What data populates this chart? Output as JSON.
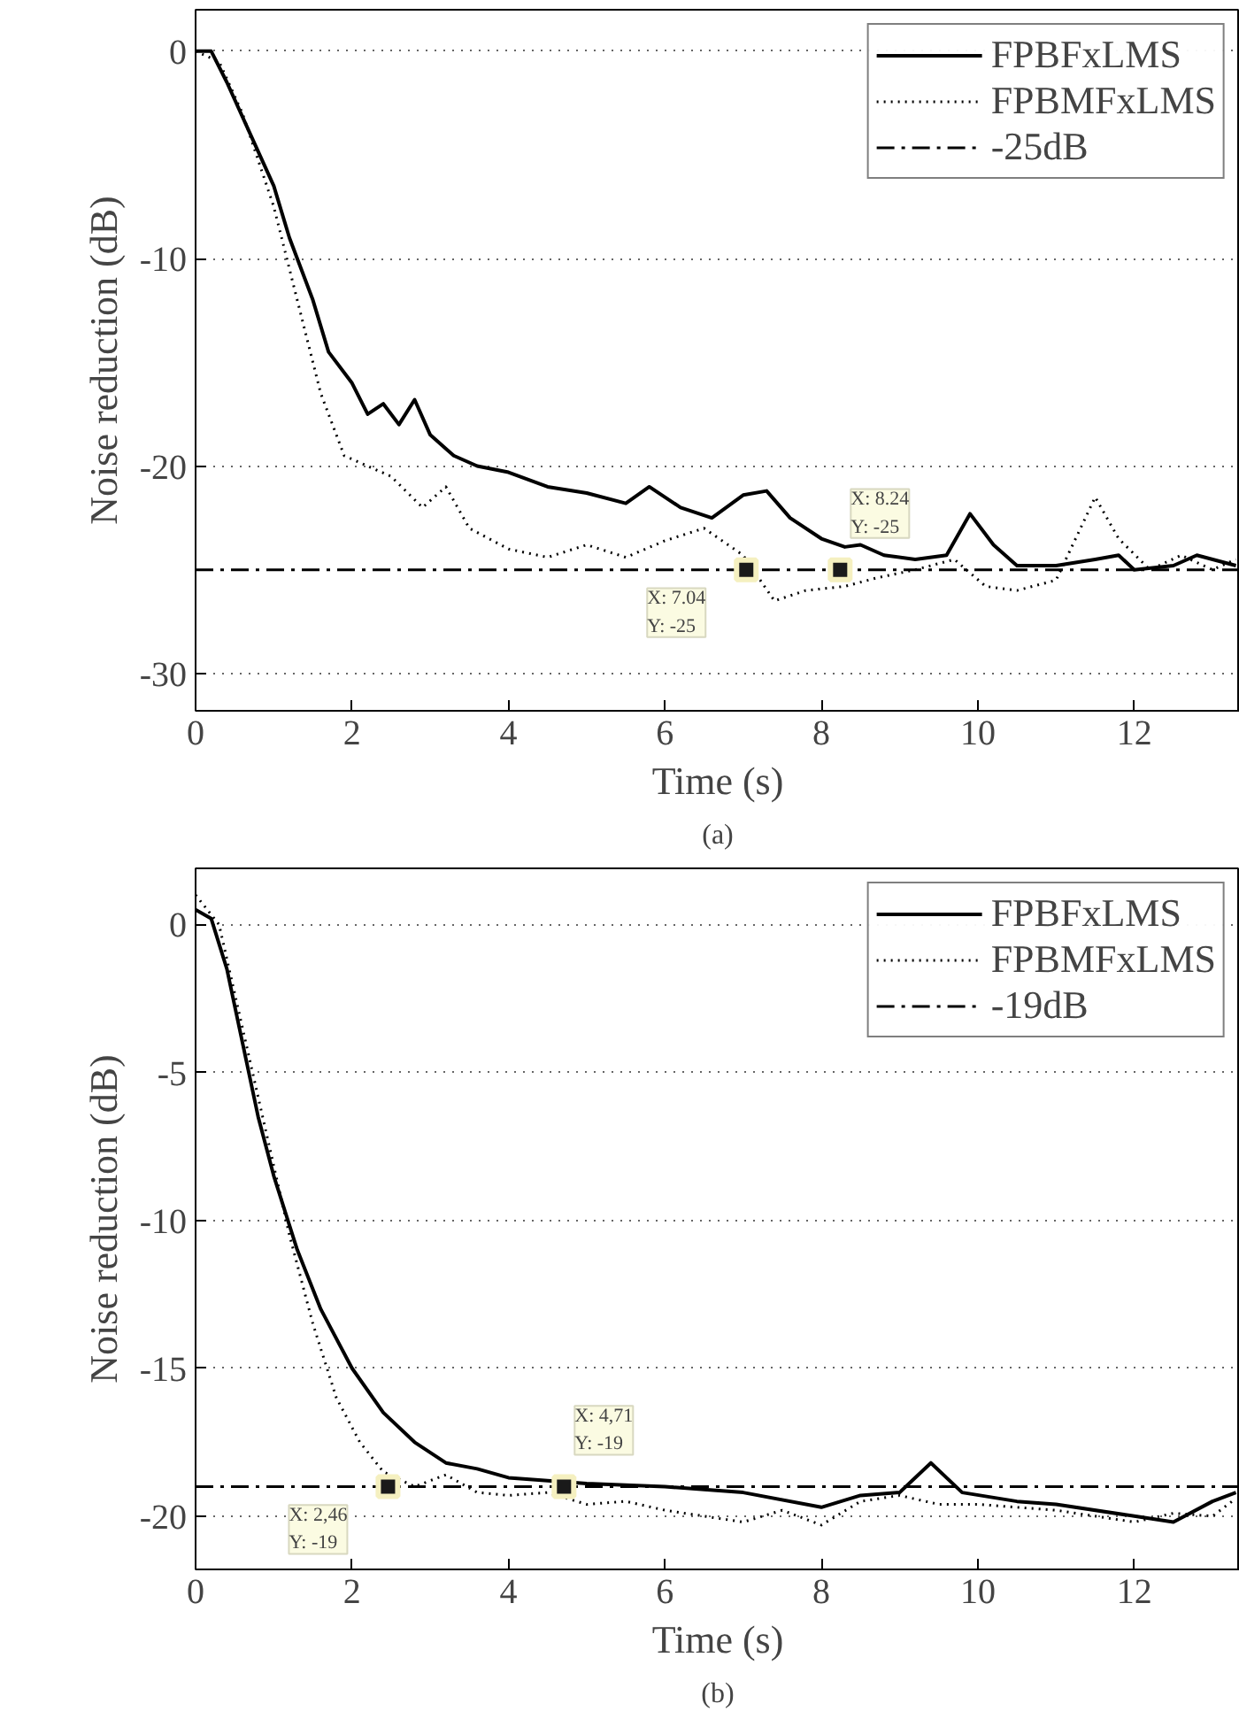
{
  "chart_data": [
    {
      "type": "line",
      "xlabel": "Time (s)",
      "ylabel": "Noise reduction (dB)",
      "xlim": [
        0,
        13.35
      ],
      "ylim": [
        -31.8,
        2
      ],
      "xticks": [
        0,
        2,
        4,
        6,
        8,
        10,
        12
      ],
      "yticks": [
        0,
        -10,
        -20,
        -30
      ],
      "grid": "y",
      "legend": "top right",
      "series": [
        {
          "name": "FPBFxLMS",
          "color": "#000000",
          "line_style": "solid",
          "x": [
            0,
            0.2,
            0.4,
            0.7,
            1,
            1.2,
            1.5,
            1.7,
            2,
            2.2,
            2.4,
            2.6,
            2.8,
            3.0,
            3.3,
            3.6,
            4,
            4.5,
            5,
            5.5,
            5.8,
            6.2,
            6.6,
            7,
            7.3,
            7.6,
            8,
            8.3,
            8.5,
            8.8,
            9.2,
            9.6,
            9.9,
            10.2,
            10.5,
            11,
            11.5,
            11.8,
            12,
            12.5,
            12.8,
            13.3
          ],
          "values": [
            0,
            0,
            -1.5,
            -4,
            -6.5,
            -9,
            -12,
            -14.5,
            -16,
            -17.5,
            -17,
            -18,
            -16.8,
            -18.5,
            -19.5,
            -20,
            -20.3,
            -21,
            -21.3,
            -21.8,
            -21,
            -22,
            -22.5,
            -21.4,
            -21.2,
            -22.5,
            -23.5,
            -23.9,
            -23.8,
            -24.3,
            -24.5,
            -24.3,
            -22.3,
            -23.8,
            -24.8,
            -24.8,
            -24.5,
            -24.3,
            -25,
            -24.8,
            -24.3,
            -24.8
          ]
        },
        {
          "name": "FPBMFxLMS",
          "color": "#000000",
          "line_style": "dotted",
          "x": [
            0,
            0.3,
            0.6,
            1,
            1.3,
            1.6,
            1.9,
            2.2,
            2.5,
            2.9,
            3.2,
            3.5,
            4,
            4.5,
            5,
            5.5,
            6,
            6.5,
            7,
            7.4,
            7.8,
            8.3,
            8.7,
            9.2,
            9.7,
            10.1,
            10.5,
            11,
            11.5,
            11.8,
            12.2,
            12.6,
            13,
            13.3
          ],
          "values": [
            0,
            -0.5,
            -3,
            -7.5,
            -12,
            -16.5,
            -19.5,
            -20,
            -20.5,
            -22,
            -21,
            -23,
            -24,
            -24.4,
            -23.8,
            -24.4,
            -23.6,
            -23,
            -24.3,
            -26.5,
            -26,
            -25.8,
            -25.4,
            -25,
            -24.5,
            -25.8,
            -26,
            -25.5,
            -21.5,
            -23.5,
            -25,
            -24.3,
            -25,
            -24.5
          ]
        }
      ],
      "ref_lines": [
        {
          "axis": "y",
          "value": -25,
          "label": "-25dB",
          "line_style": "dashed",
          "color": "#000000"
        }
      ],
      "annotations": [
        {
          "text": "X: 7.04\nY: -25",
          "x": 7.04,
          "y": -25
        },
        {
          "text": "X: 8.24\nY: -25",
          "x": 8.24,
          "y": -25
        },
        "(a)"
      ]
    },
    {
      "type": "line",
      "xlabel": "Time (s)",
      "ylabel": "Noise reduction (dB)",
      "xlim": [
        0,
        13.35
      ],
      "ylim": [
        -21.8,
        1.9
      ],
      "xticks": [
        0,
        2,
        4,
        6,
        8,
        10,
        12
      ],
      "yticks": [
        0,
        -5,
        -10,
        -15,
        -20
      ],
      "grid": "y",
      "legend": "top right",
      "series": [
        {
          "name": "FPBFxLMS",
          "color": "#000000",
          "line_style": "solid",
          "x": [
            0,
            0.2,
            0.4,
            0.6,
            0.8,
            1,
            1.3,
            1.6,
            2,
            2.4,
            2.8,
            3.2,
            3.6,
            4,
            4.5,
            5,
            6,
            7,
            8,
            8.5,
            9,
            9.4,
            9.8,
            10.5,
            11,
            12,
            12.5,
            13,
            13.3
          ],
          "values": [
            0.5,
            0.2,
            -1.5,
            -4,
            -6.5,
            -8.5,
            -11,
            -13,
            -15,
            -16.5,
            -17.5,
            -18.2,
            -18.4,
            -18.7,
            -18.8,
            -18.9,
            -19,
            -19.2,
            -19.7,
            -19.3,
            -19.2,
            -18.2,
            -19.2,
            -19.5,
            -19.6,
            -20,
            -20.2,
            -19.5,
            -19.2
          ]
        },
        {
          "name": "FPBMFxLMS",
          "color": "#000000",
          "line_style": "dotted",
          "x": [
            0,
            0.3,
            0.6,
            0.9,
            1.2,
            1.5,
            1.8,
            2.1,
            2.4,
            2.8,
            3.2,
            3.6,
            4,
            4.5,
            5,
            5.5,
            6,
            7,
            7.5,
            8,
            8.5,
            9,
            9.5,
            10,
            11,
            12,
            12.5,
            13,
            13.3
          ],
          "values": [
            1,
            0,
            -3.5,
            -7,
            -10.5,
            -13.5,
            -16,
            -17.5,
            -18.5,
            -19,
            -18.6,
            -19.2,
            -19.3,
            -19.2,
            -19.6,
            -19.5,
            -19.8,
            -20.2,
            -19.8,
            -20.3,
            -19.5,
            -19.3,
            -19.6,
            -19.6,
            -19.8,
            -20.2,
            -19.9,
            -20,
            -19.4
          ]
        }
      ],
      "ref_lines": [
        {
          "axis": "y",
          "value": -19,
          "label": "-19dB",
          "line_style": "dashed",
          "color": "#000000"
        }
      ],
      "annotations": [
        {
          "text": "X: 2,46\nY: -19",
          "x": 2.46,
          "y": -19
        },
        {
          "text": "X: 4,71\nY: -19",
          "x": 4.71,
          "y": -19
        },
        "(b)"
      ]
    }
  ]
}
